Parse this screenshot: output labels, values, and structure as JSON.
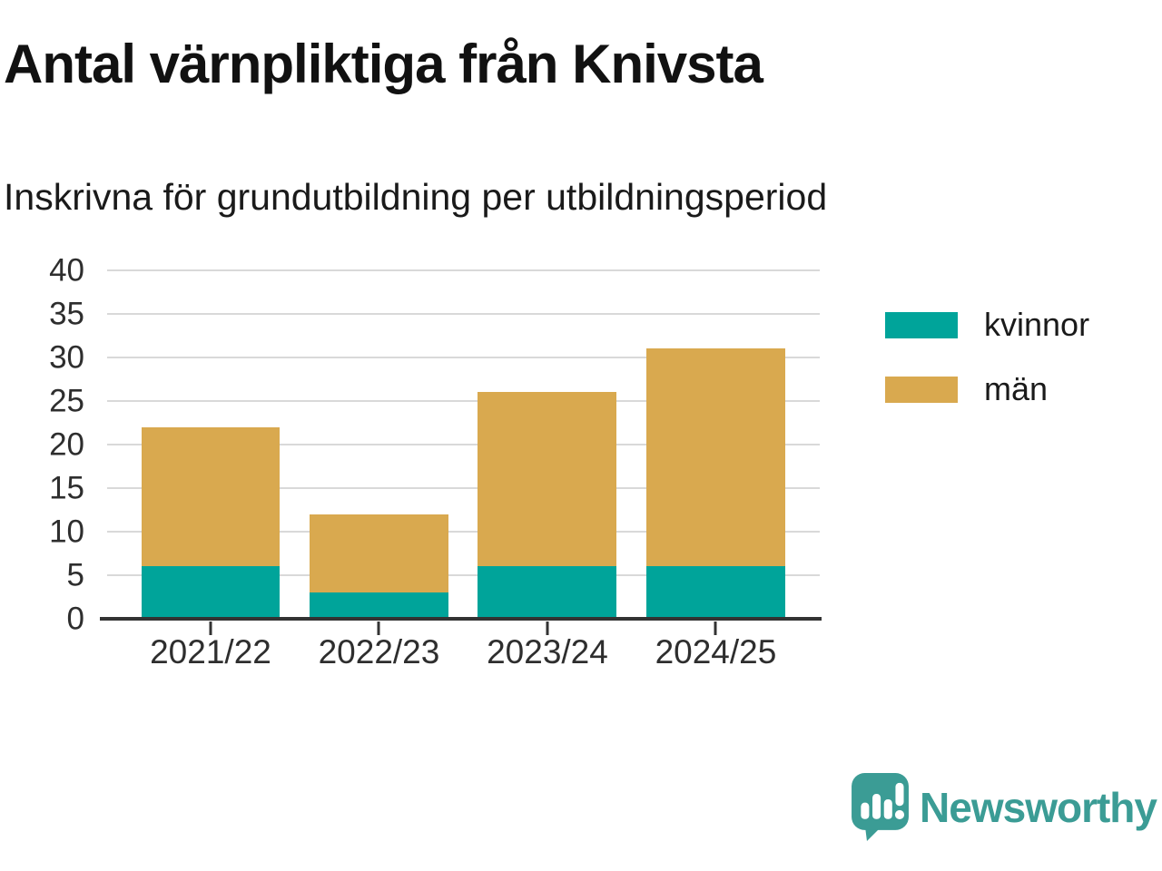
{
  "header": {
    "title": "Antal värnpliktiga från Knivsta",
    "subtitle": "Inskrivna för grundutbildning per utbildningsperiod"
  },
  "chart_data": {
    "type": "bar",
    "stacked": true,
    "title": "Antal värnpliktiga från Knivsta",
    "subtitle": "Inskrivna för grundutbildning per utbildningsperiod",
    "categories": [
      "2021/22",
      "2022/23",
      "2023/24",
      "2024/25"
    ],
    "series": [
      {
        "name": "kvinnor",
        "key": "kvinnor",
        "color": "#00a49a",
        "values": [
          6,
          3,
          6,
          6
        ]
      },
      {
        "name": "män",
        "key": "man",
        "color": "#d9a94f",
        "values": [
          16,
          9,
          20,
          25
        ]
      }
    ],
    "stack_totals": [
      22,
      12,
      26,
      31
    ],
    "xlabel": "",
    "ylabel": "",
    "ylim": [
      0,
      40
    ],
    "y_ticks": [
      0,
      5,
      10,
      15,
      20,
      25,
      30,
      35,
      40
    ],
    "grid": "horizontal",
    "legend_position": "right"
  },
  "footer": {
    "brand": "Newsworthy",
    "logo_icon": "speech-bubble-bar-chart-icon"
  },
  "colors": {
    "kvinnor": "#00a49a",
    "man": "#d9a94f",
    "axis": "#333333",
    "gridline": "#d9d9d9",
    "brand": "#3b9c95"
  }
}
